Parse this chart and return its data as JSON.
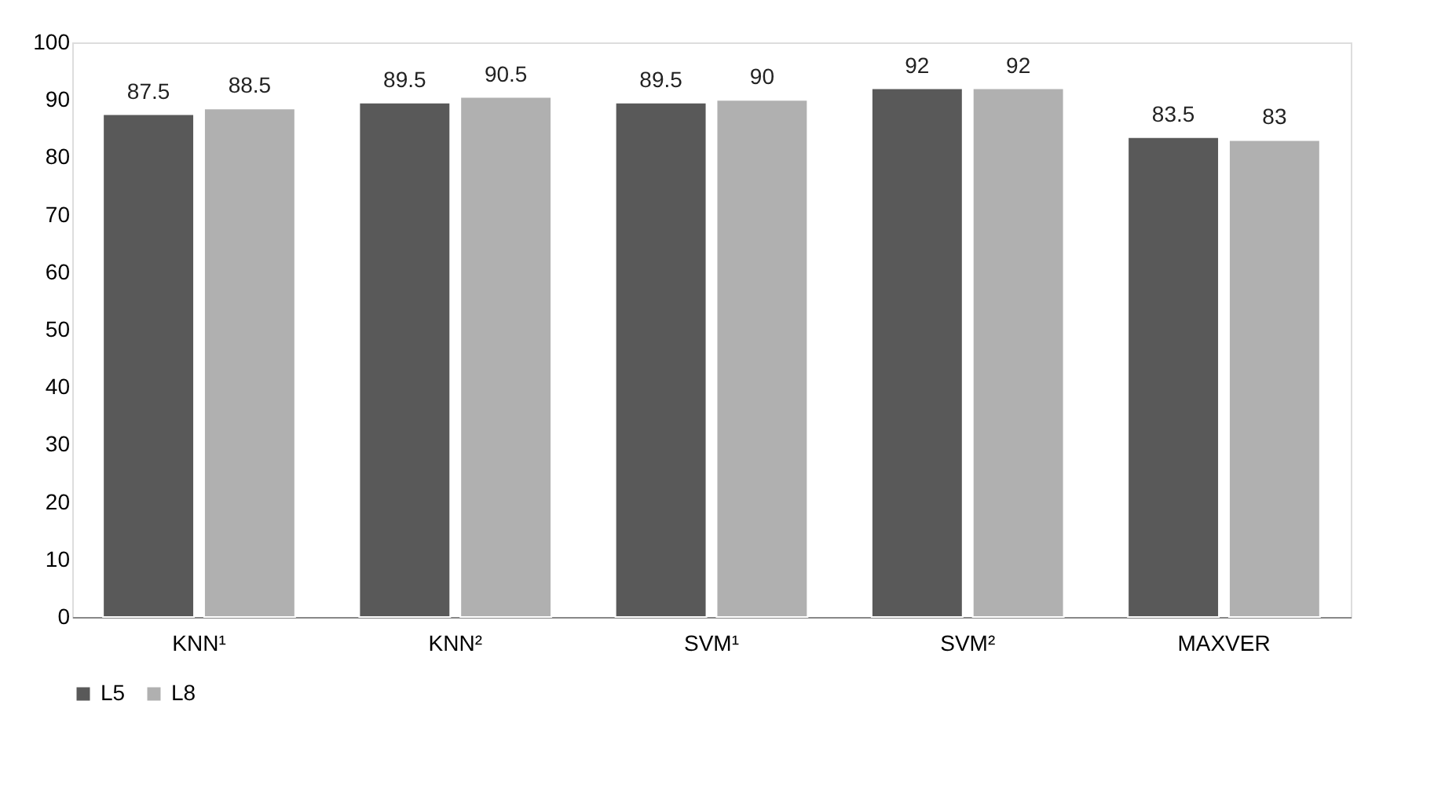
{
  "chart_data": {
    "type": "bar",
    "categories": [
      "KNN¹",
      "KNN²",
      "SVM¹",
      "SVM²",
      "MAXVER"
    ],
    "series": [
      {
        "name": "L5",
        "color": "#595959",
        "values": [
          87.5,
          89.5,
          89.5,
          92,
          83.5
        ]
      },
      {
        "name": "L8",
        "color": "#b0b0b0",
        "values": [
          88.5,
          90.5,
          90,
          92,
          83
        ]
      }
    ],
    "ylim": [
      0,
      100
    ],
    "yticks": [
      0,
      10,
      20,
      30,
      40,
      50,
      60,
      70,
      80,
      90,
      100
    ],
    "grid": false,
    "legend": "bottom",
    "data_labels": true
  }
}
